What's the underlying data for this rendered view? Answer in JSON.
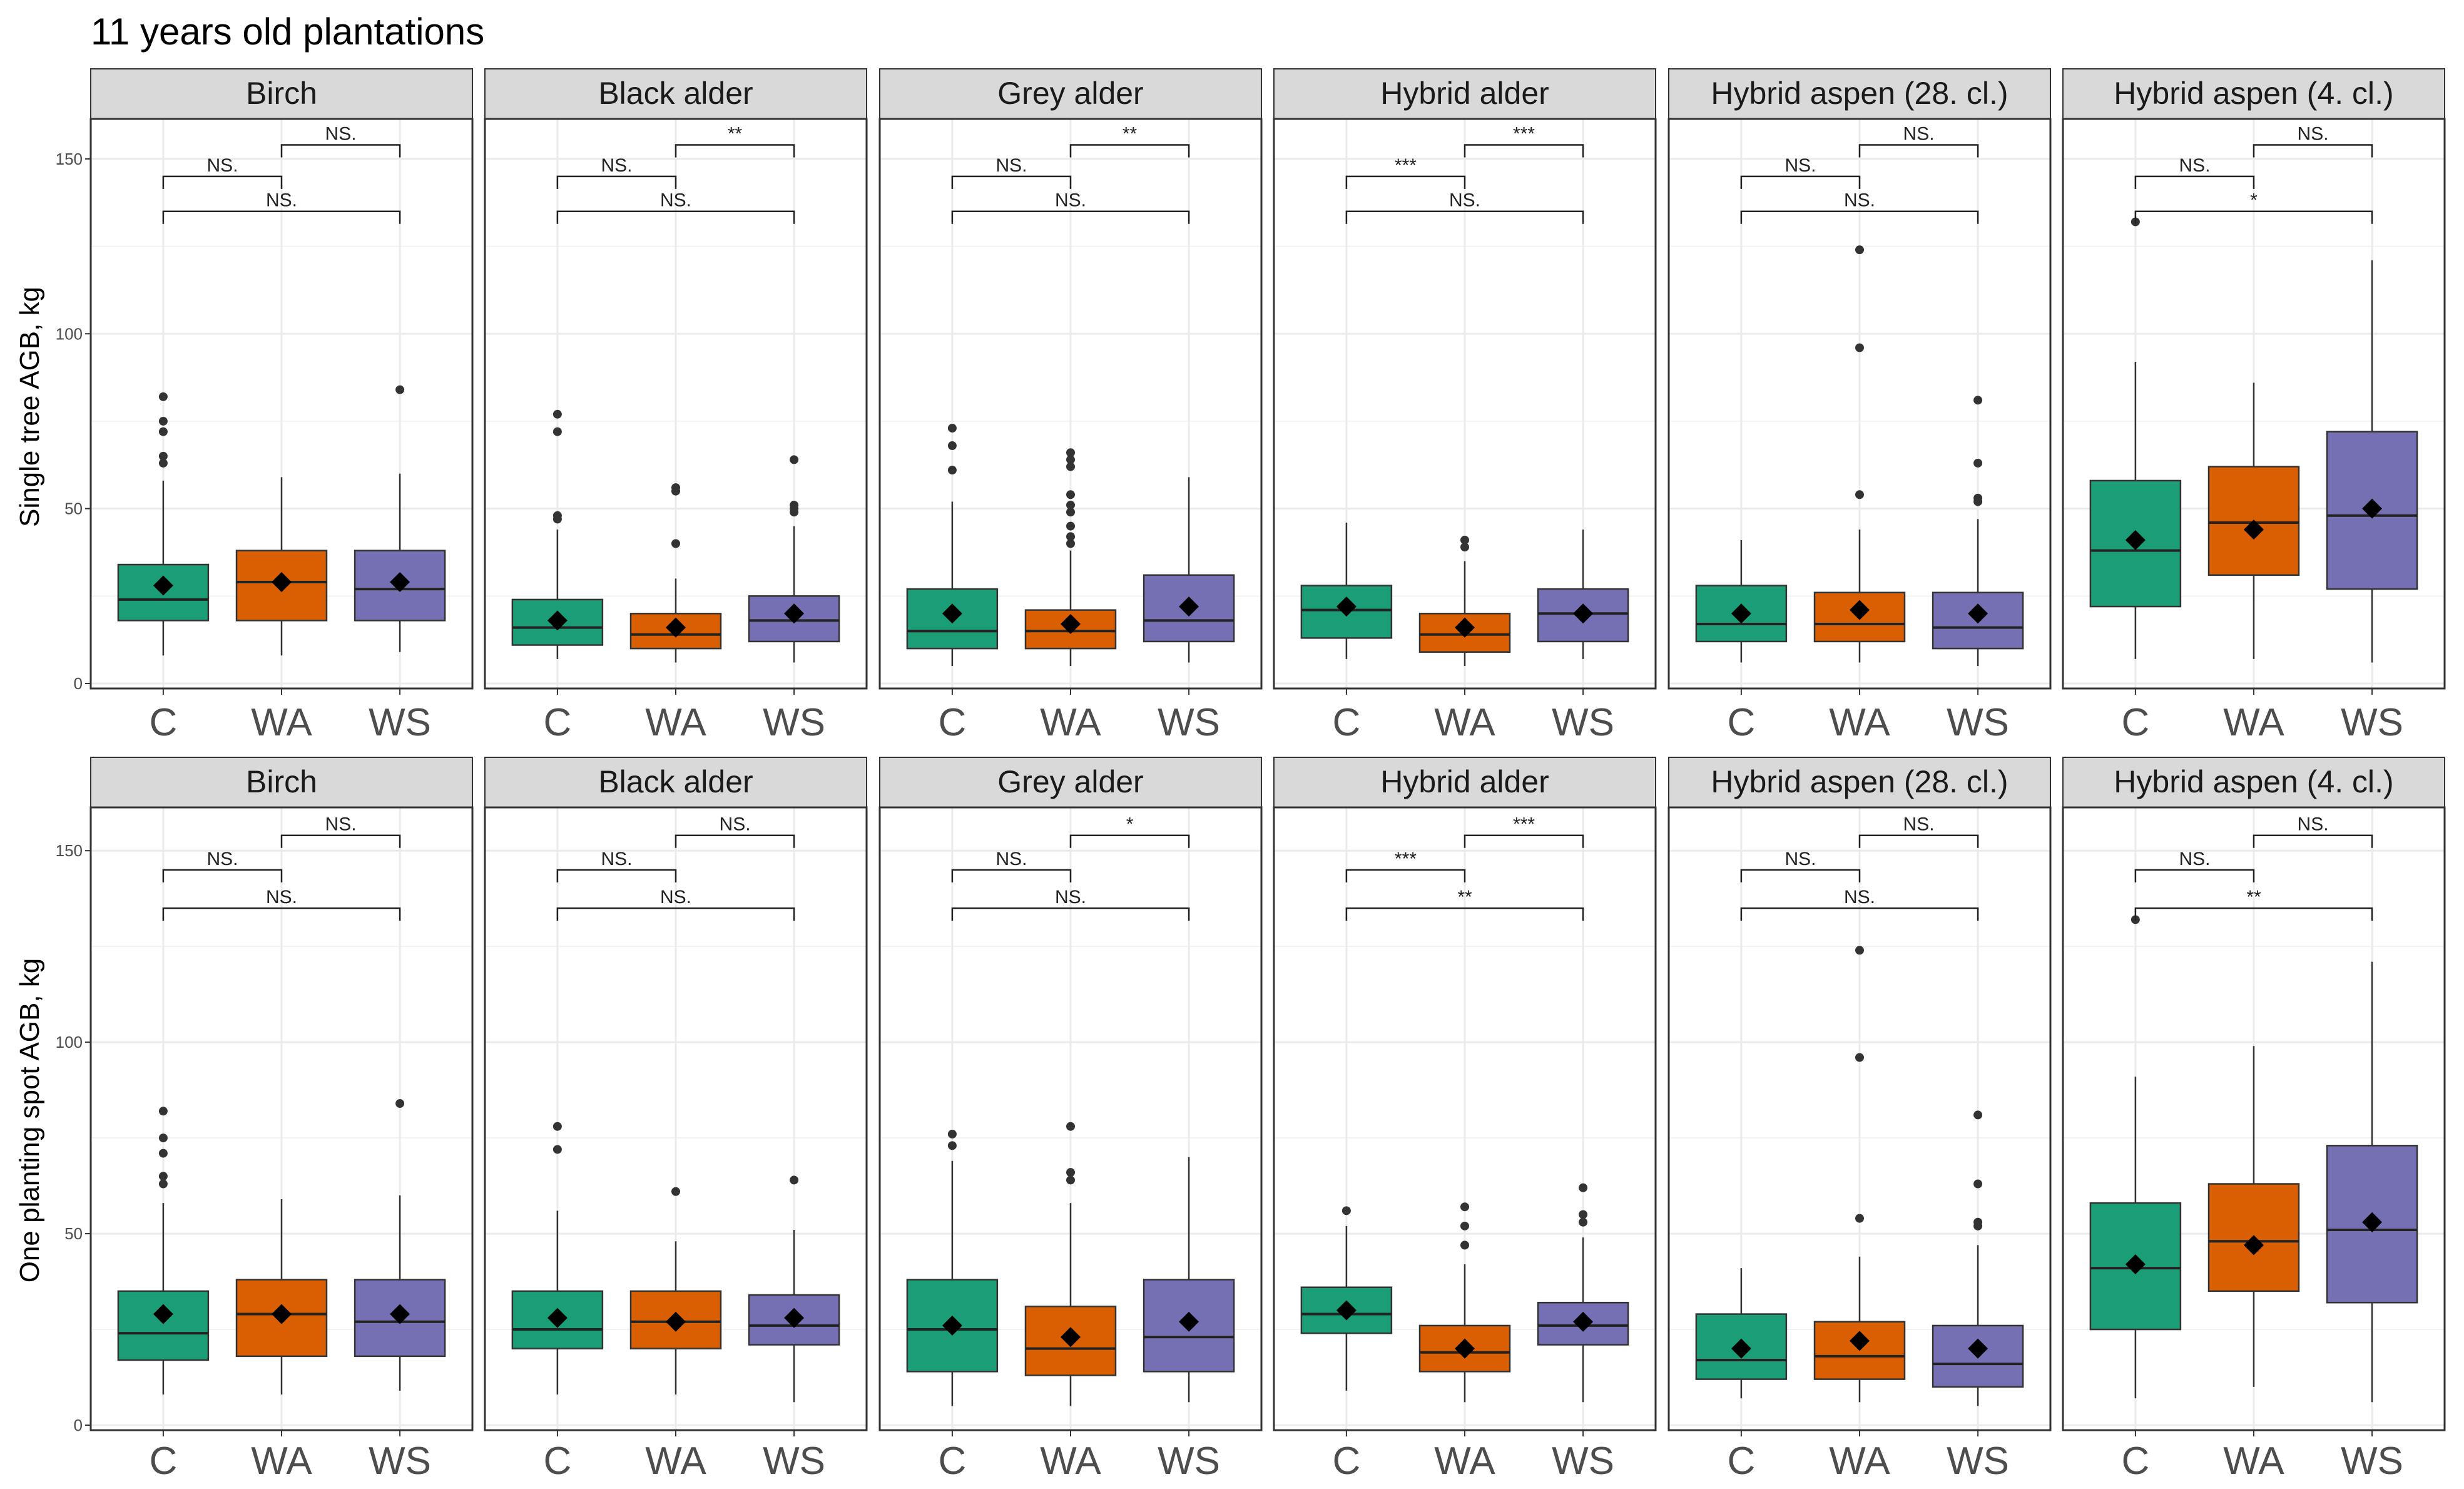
{
  "title": "11 years old plantations",
  "colors": {
    "C": "#1b9e77",
    "WA": "#d95f02",
    "WS": "#7570b3",
    "strip_bg": "#d9d9d9",
    "grid": "#ebebeb"
  },
  "chart_data": {
    "type": "boxplot",
    "title": "11 years old plantations",
    "categories": [
      "C",
      "WA",
      "WS"
    ],
    "ylim": [
      0,
      160
    ],
    "yticks": [
      0,
      50,
      100,
      150
    ],
    "grid": true,
    "rows": [
      {
        "ylabel": "Single tree AGB, kg",
        "panels": [
          {
            "name": "Birch",
            "boxes": [
              {
                "cat": "C",
                "whisker_low": 8,
                "q1": 18,
                "median": 24,
                "q3": 34,
                "whisker_high": 58,
                "mean": 28,
                "outliers": [
                  63,
                  65,
                  72,
                  75,
                  82
                ]
              },
              {
                "cat": "WA",
                "whisker_low": 8,
                "q1": 18,
                "median": 29,
                "q3": 38,
                "whisker_high": 59,
                "mean": 29,
                "outliers": []
              },
              {
                "cat": "WS",
                "whisker_low": 9,
                "q1": 18,
                "median": 27,
                "q3": 38,
                "whisker_high": 60,
                "mean": 29,
                "outliers": [
                  84
                ]
              }
            ],
            "sig": {
              "C_WA": "NS.",
              "WA_WS": "NS.",
              "C_WS": "NS."
            }
          },
          {
            "name": "Black alder",
            "boxes": [
              {
                "cat": "C",
                "whisker_low": 7,
                "q1": 11,
                "median": 16,
                "q3": 24,
                "whisker_high": 44,
                "mean": 18,
                "outliers": [
                  47,
                  48,
                  72,
                  77
                ]
              },
              {
                "cat": "WA",
                "whisker_low": 6,
                "q1": 10,
                "median": 14,
                "q3": 20,
                "whisker_high": 30,
                "mean": 16,
                "outliers": [
                  40,
                  55,
                  56
                ]
              },
              {
                "cat": "WS",
                "whisker_low": 6,
                "q1": 12,
                "median": 18,
                "q3": 25,
                "whisker_high": 45,
                "mean": 20,
                "outliers": [
                  49,
                  50,
                  51,
                  64
                ]
              }
            ],
            "sig": {
              "C_WA": "NS.",
              "WA_WS": "**",
              "C_WS": "NS."
            }
          },
          {
            "name": "Grey alder",
            "boxes": [
              {
                "cat": "C",
                "whisker_low": 5,
                "q1": 10,
                "median": 15,
                "q3": 27,
                "whisker_high": 52,
                "mean": 20,
                "outliers": [
                  61,
                  68,
                  73
                ]
              },
              {
                "cat": "WA",
                "whisker_low": 5,
                "q1": 10,
                "median": 15,
                "q3": 21,
                "whisker_high": 38,
                "mean": 17,
                "outliers": [
                  40,
                  42,
                  45,
                  49,
                  51,
                  54,
                  62,
                  64,
                  66
                ]
              },
              {
                "cat": "WS",
                "whisker_low": 6,
                "q1": 12,
                "median": 18,
                "q3": 31,
                "whisker_high": 59,
                "mean": 22,
                "outliers": []
              }
            ],
            "sig": {
              "C_WA": "NS.",
              "WA_WS": "**",
              "C_WS": "NS."
            }
          },
          {
            "name": "Hybrid alder",
            "boxes": [
              {
                "cat": "C",
                "whisker_low": 7,
                "q1": 13,
                "median": 21,
                "q3": 28,
                "whisker_high": 46,
                "mean": 22,
                "outliers": []
              },
              {
                "cat": "WA",
                "whisker_low": 5,
                "q1": 9,
                "median": 14,
                "q3": 20,
                "whisker_high": 35,
                "mean": 16,
                "outliers": [
                  39,
                  41
                ]
              },
              {
                "cat": "WS",
                "whisker_low": 7,
                "q1": 12,
                "median": 20,
                "q3": 27,
                "whisker_high": 44,
                "mean": 20,
                "outliers": []
              }
            ],
            "sig": {
              "C_WA": "***",
              "WA_WS": "***",
              "C_WS": "NS."
            }
          },
          {
            "name": "Hybrid aspen (28. cl.)",
            "boxes": [
              {
                "cat": "C",
                "whisker_low": 6,
                "q1": 12,
                "median": 17,
                "q3": 28,
                "whisker_high": 41,
                "mean": 20,
                "outliers": []
              },
              {
                "cat": "WA",
                "whisker_low": 6,
                "q1": 12,
                "median": 17,
                "q3": 26,
                "whisker_high": 44,
                "mean": 21,
                "outliers": [
                  54,
                  96,
                  124
                ]
              },
              {
                "cat": "WS",
                "whisker_low": 5,
                "q1": 10,
                "median": 16,
                "q3": 26,
                "whisker_high": 47,
                "mean": 20,
                "outliers": [
                  52,
                  53,
                  63,
                  81
                ]
              }
            ],
            "sig": {
              "C_WA": "NS.",
              "WA_WS": "NS.",
              "C_WS": "NS."
            }
          },
          {
            "name": "Hybrid aspen (4. cl.)",
            "boxes": [
              {
                "cat": "C",
                "whisker_low": 7,
                "q1": 22,
                "median": 38,
                "q3": 58,
                "whisker_high": 92,
                "mean": 41,
                "outliers": [
                  132
                ]
              },
              {
                "cat": "WA",
                "whisker_low": 7,
                "q1": 31,
                "median": 46,
                "q3": 62,
                "whisker_high": 86,
                "mean": 44,
                "outliers": []
              },
              {
                "cat": "WS",
                "whisker_low": 6,
                "q1": 27,
                "median": 48,
                "q3": 72,
                "whisker_high": 121,
                "mean": 50,
                "outliers": []
              }
            ],
            "sig": {
              "C_WA": "NS.",
              "WA_WS": "NS.",
              "C_WS": "*"
            }
          }
        ]
      },
      {
        "ylabel": "One planting spot AGB, kg",
        "panels": [
          {
            "name": "Birch",
            "boxes": [
              {
                "cat": "C",
                "whisker_low": 8,
                "q1": 17,
                "median": 24,
                "q3": 35,
                "whisker_high": 58,
                "mean": 29,
                "outliers": [
                  63,
                  65,
                  71,
                  75,
                  82
                ]
              },
              {
                "cat": "WA",
                "whisker_low": 8,
                "q1": 18,
                "median": 29,
                "q3": 38,
                "whisker_high": 59,
                "mean": 29,
                "outliers": []
              },
              {
                "cat": "WS",
                "whisker_low": 9,
                "q1": 18,
                "median": 27,
                "q3": 38,
                "whisker_high": 60,
                "mean": 29,
                "outliers": [
                  84
                ]
              }
            ],
            "sig": {
              "C_WA": "NS.",
              "WA_WS": "NS.",
              "C_WS": "NS."
            }
          },
          {
            "name": "Black alder",
            "boxes": [
              {
                "cat": "C",
                "whisker_low": 8,
                "q1": 20,
                "median": 25,
                "q3": 35,
                "whisker_high": 56,
                "mean": 28,
                "outliers": [
                  72,
                  78
                ]
              },
              {
                "cat": "WA",
                "whisker_low": 8,
                "q1": 20,
                "median": 27,
                "q3": 35,
                "whisker_high": 48,
                "mean": 27,
                "outliers": [
                  61
                ]
              },
              {
                "cat": "WS",
                "whisker_low": 6,
                "q1": 21,
                "median": 26,
                "q3": 34,
                "whisker_high": 51,
                "mean": 28,
                "outliers": [
                  64
                ]
              }
            ],
            "sig": {
              "C_WA": "NS.",
              "WA_WS": "NS.",
              "C_WS": "NS."
            }
          },
          {
            "name": "Grey alder",
            "boxes": [
              {
                "cat": "C",
                "whisker_low": 5,
                "q1": 14,
                "median": 25,
                "q3": 38,
                "whisker_high": 69,
                "mean": 26,
                "outliers": [
                  73,
                  76
                ]
              },
              {
                "cat": "WA",
                "whisker_low": 5,
                "q1": 13,
                "median": 20,
                "q3": 31,
                "whisker_high": 58,
                "mean": 23,
                "outliers": [
                  64,
                  66,
                  78
                ]
              },
              {
                "cat": "WS",
                "whisker_low": 6,
                "q1": 14,
                "median": 23,
                "q3": 38,
                "whisker_high": 70,
                "mean": 27,
                "outliers": []
              }
            ],
            "sig": {
              "C_WA": "NS.",
              "WA_WS": "*",
              "C_WS": "NS."
            }
          },
          {
            "name": "Hybrid alder",
            "boxes": [
              {
                "cat": "C",
                "whisker_low": 9,
                "q1": 24,
                "median": 29,
                "q3": 36,
                "whisker_high": 52,
                "mean": 30,
                "outliers": [
                  56
                ]
              },
              {
                "cat": "WA",
                "whisker_low": 6,
                "q1": 14,
                "median": 19,
                "q3": 26,
                "whisker_high": 42,
                "mean": 20,
                "outliers": [
                  47,
                  52,
                  57
                ]
              },
              {
                "cat": "WS",
                "whisker_low": 6,
                "q1": 21,
                "median": 26,
                "q3": 32,
                "whisker_high": 49,
                "mean": 27,
                "outliers": [
                  53,
                  55,
                  62
                ]
              }
            ],
            "sig": {
              "C_WA": "***",
              "WA_WS": "***",
              "C_WS": "**"
            }
          },
          {
            "name": "Hybrid aspen (28. cl.)",
            "boxes": [
              {
                "cat": "C",
                "whisker_low": 7,
                "q1": 12,
                "median": 17,
                "q3": 29,
                "whisker_high": 41,
                "mean": 20,
                "outliers": []
              },
              {
                "cat": "WA",
                "whisker_low": 6,
                "q1": 12,
                "median": 18,
                "q3": 27,
                "whisker_high": 44,
                "mean": 22,
                "outliers": [
                  54,
                  96,
                  124
                ]
              },
              {
                "cat": "WS",
                "whisker_low": 5,
                "q1": 10,
                "median": 16,
                "q3": 26,
                "whisker_high": 47,
                "mean": 20,
                "outliers": [
                  52,
                  53,
                  63,
                  81
                ]
              }
            ],
            "sig": {
              "C_WA": "NS.",
              "WA_WS": "NS.",
              "C_WS": "NS."
            }
          },
          {
            "name": "Hybrid aspen (4. cl.)",
            "boxes": [
              {
                "cat": "C",
                "whisker_low": 7,
                "q1": 25,
                "median": 41,
                "q3": 58,
                "whisker_high": 91,
                "mean": 42,
                "outliers": [
                  132
                ]
              },
              {
                "cat": "WA",
                "whisker_low": 10,
                "q1": 35,
                "median": 48,
                "q3": 63,
                "whisker_high": 99,
                "mean": 47,
                "outliers": []
              },
              {
                "cat": "WS",
                "whisker_low": 6,
                "q1": 32,
                "median": 51,
                "q3": 73,
                "whisker_high": 121,
                "mean": 53,
                "outliers": []
              }
            ],
            "sig": {
              "C_WA": "NS.",
              "WA_WS": "NS.",
              "C_WS": "**"
            }
          }
        ]
      }
    ]
  }
}
